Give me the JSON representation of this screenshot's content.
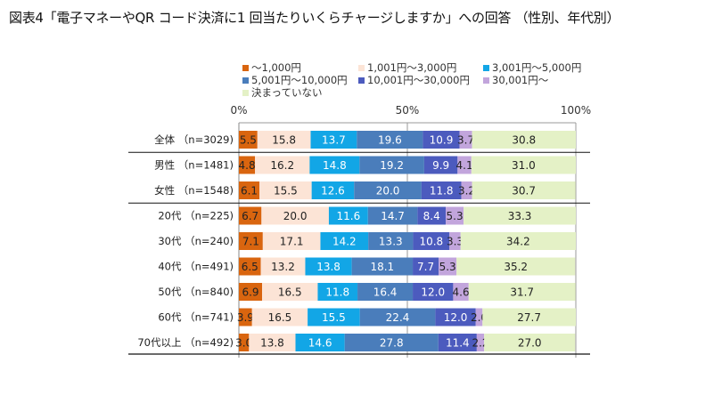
{
  "title": "図表4「電子マネーやQR コード決済に1 回当たりいくらチャージしますか」への回答 （性別、年代別）",
  "chart_data": {
    "type": "bar",
    "orientation": "horizontal",
    "stacked": true,
    "title": "図表4「電子マネーやQR コード決済に1 回当たりいくらチャージしますか」への回答 （性別、年代別）",
    "xlabel": "",
    "ylabel": "",
    "xlim": [
      0,
      100
    ],
    "x_ticks": [
      "0%",
      "50%",
      "100%"
    ],
    "legend_position": "top",
    "categories": [
      "全体（n=3029)",
      "男性（n=1481)",
      "女性（n=1548)",
      "20代（n=225)",
      "30代（n=240)",
      "40代（n=491)",
      "50代（n=840)",
      "60代（n=741)",
      "70代以上（n=492)"
    ],
    "group_dividers_after": [
      0,
      2
    ],
    "series": [
      {
        "name": "～1,000円",
        "color": "#D9650F",
        "label_color": "#222222",
        "values": [
          5.5,
          4.8,
          6.1,
          6.7,
          7.1,
          6.5,
          6.9,
          3.9,
          3.0
        ]
      },
      {
        "name": "1,001円～3,000円",
        "color": "#FCE4D6",
        "label_color": "#222222",
        "values": [
          15.8,
          16.2,
          15.5,
          20.0,
          17.1,
          13.2,
          16.5,
          16.5,
          13.8
        ]
      },
      {
        "name": "3,001円～5,000円",
        "color": "#12A6E6",
        "label_color": "#ffffff",
        "values": [
          13.7,
          14.8,
          12.6,
          11.6,
          14.2,
          13.8,
          11.8,
          15.5,
          14.6
        ]
      },
      {
        "name": "5,001円～10,000円",
        "color": "#4A7DBB",
        "label_color": "#ffffff",
        "values": [
          19.6,
          19.2,
          20.0,
          14.7,
          13.3,
          18.1,
          16.4,
          22.4,
          27.8
        ]
      },
      {
        "name": "10,001円～30,000円",
        "color": "#4C5BBE",
        "label_color": "#ffffff",
        "values": [
          10.9,
          9.9,
          11.8,
          8.4,
          10.8,
          7.7,
          12.0,
          12.0,
          11.4
        ]
      },
      {
        "name": "30,001円～",
        "color": "#C2A5DC",
        "label_color": "#222222",
        "values": [
          3.7,
          4.1,
          3.2,
          5.3,
          3.3,
          5.3,
          4.6,
          2.0,
          2.2
        ]
      },
      {
        "name": "決まっていない",
        "color": "#E4F1C6",
        "label_color": "#222222",
        "values": [
          30.8,
          31.0,
          30.7,
          33.3,
          34.2,
          35.2,
          31.7,
          27.7,
          27.0
        ]
      }
    ]
  }
}
